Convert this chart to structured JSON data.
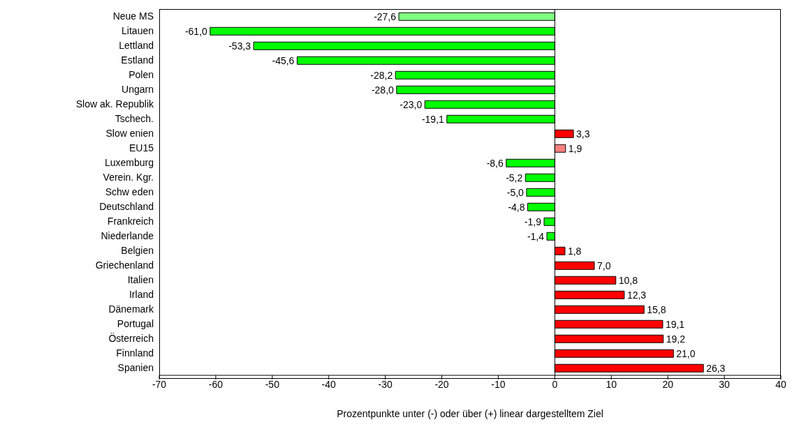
{
  "chart_data": {
    "type": "bar",
    "orientation": "horizontal",
    "xlabel": "Prozentpunkte unter (-) oder über (+) linear dargestelltem Ziel",
    "categories": [
      "Neue MS",
      "Litauen",
      "Lettland",
      "Estland",
      "Polen",
      "Ungarn",
      "Slow ak. Republik",
      "Tschech.",
      "Slow enien",
      "EU15",
      "Luxemburg",
      "Verein. Kgr.",
      "Schw eden",
      "Deutschland",
      "Frankreich",
      "Niederlande",
      "Belgien",
      "Griechenland",
      "Italien",
      "Irland",
      "Dänemark",
      "Portugal",
      "Österreich",
      "Finnland",
      "Spanien"
    ],
    "values": [
      -27.6,
      -61.0,
      -53.3,
      -45.6,
      -28.2,
      -28.0,
      -23.0,
      -19.1,
      3.3,
      1.9,
      -8.6,
      -5.2,
      -5.0,
      -4.8,
      -1.9,
      -1.4,
      1.8,
      7.0,
      10.8,
      12.3,
      15.8,
      19.1,
      19.2,
      21.0,
      26.3
    ],
    "colors": [
      "#80ff80",
      "#00ff00",
      "#00ff00",
      "#00ff00",
      "#00ff00",
      "#00ff00",
      "#00ff00",
      "#00ff00",
      "#ff0000",
      "#ff8080",
      "#00ff00",
      "#00ff00",
      "#00ff00",
      "#00ff00",
      "#00ff00",
      "#00ff00",
      "#ff0000",
      "#ff0000",
      "#ff0000",
      "#ff0000",
      "#ff0000",
      "#ff0000",
      "#ff0000",
      "#ff0000",
      "#ff0000"
    ],
    "value_labels": [
      "-27,6",
      "-61,0",
      "-53,3",
      "-45,6",
      "-28,2",
      "-28,0",
      "-23,0",
      "-19,1",
      "3,3",
      "1,9",
      "-8,6",
      "-5,2",
      "-5,0",
      "-4,8",
      "-1,9",
      "-1,4",
      "1,8",
      "7,0",
      "10,8",
      "12,3",
      "15,8",
      "19,1",
      "19,2",
      "21,0",
      "26,3"
    ],
    "xlim": [
      -70,
      40
    ],
    "xticks": [
      -70,
      -60,
      -50,
      -40,
      -30,
      -20,
      -10,
      0,
      10,
      20,
      30,
      40
    ],
    "legend": false
  }
}
